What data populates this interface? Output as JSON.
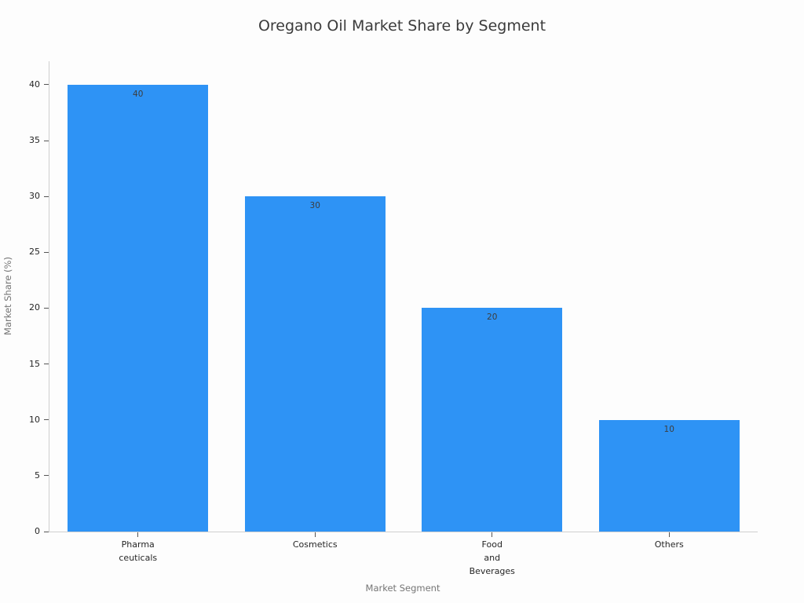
{
  "chart_data": {
    "type": "bar",
    "title": "Oregano Oil Market Share by Segment",
    "xlabel": "Market Segment",
    "ylabel": "Market Share (%)",
    "categories": [
      "Pharma\nceuticals",
      "Cosmetics",
      "Food\nand\nBeverages",
      "Others"
    ],
    "values": [
      40,
      30,
      20,
      10
    ],
    "bar_value_labels": [
      "40",
      "30",
      "20",
      "10"
    ],
    "yticks": [
      0,
      5,
      10,
      15,
      20,
      25,
      30,
      35,
      40
    ],
    "ylim": [
      0,
      42.1
    ],
    "grid": false,
    "legend_position": "none",
    "colors": {
      "bar": "#2e93f5",
      "bar_value_label": "#3d3d3d",
      "axis_spine": "#cfcfcf",
      "tick_mark": "#555555",
      "tick_label": "#262626",
      "axis_title": "#757575",
      "title": "#3b3b3b",
      "background": "#fdfdfd"
    }
  }
}
